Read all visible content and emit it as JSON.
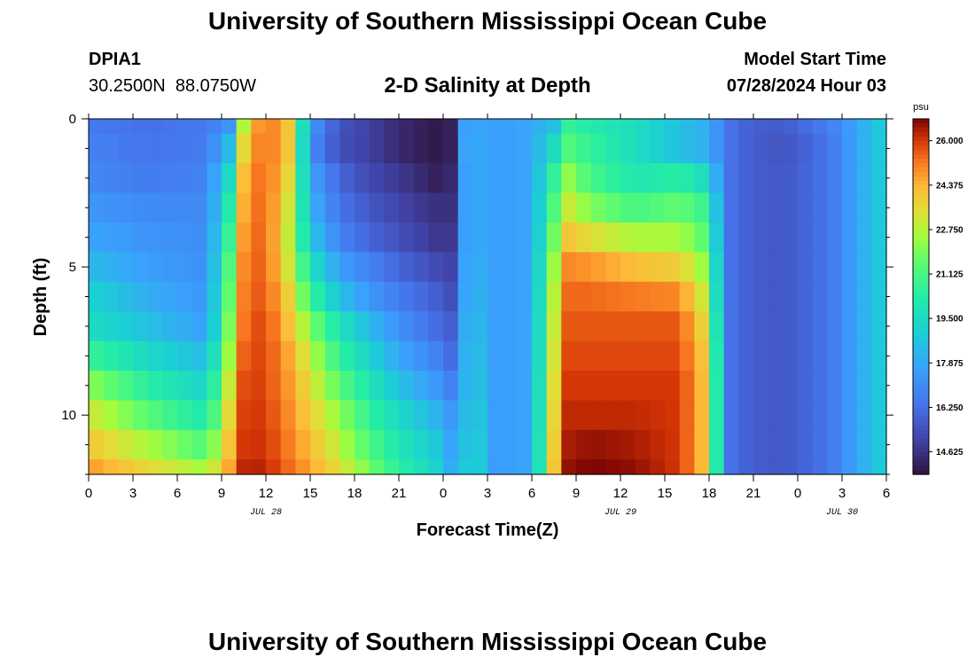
{
  "page": {
    "title": "University of Southern Mississippi Ocean Cube",
    "title_bottom": "University of Southern Mississippi Ocean Cube",
    "station_id": "DPIA1",
    "station_coords": "30.2500N  88.0750W",
    "plot_title": "2-D Salinity at Depth",
    "model_start_label": "Model Start Time",
    "model_start_time": "07/28/2024 Hour 03"
  },
  "chart_data": {
    "type": "heatmap",
    "title": "2-D Salinity at Depth",
    "xlabel": "Forecast Time(Z)",
    "ylabel": "Depth (ft)",
    "x_tick_labels": [
      "0",
      "3",
      "6",
      "9",
      "12",
      "15",
      "18",
      "21",
      "0",
      "3",
      "6",
      "9",
      "12",
      "15",
      "18",
      "21",
      "0",
      "3",
      "6"
    ],
    "x_range_hours": [
      0,
      54
    ],
    "date_labels": [
      {
        "text": "JUL 28",
        "hour": 12
      },
      {
        "text": "JUL 29",
        "hour": 36
      },
      {
        "text": "JUL 30",
        "hour": 51
      }
    ],
    "y_tick_labels": [
      "0",
      "5",
      "10"
    ],
    "y_range_ft": [
      0,
      12
    ],
    "colorbar": {
      "unit": "psu",
      "range": [
        13.8,
        26.8
      ],
      "tick_labels": [
        "26.000",
        "24.375",
        "22.750",
        "21.125",
        "19.500",
        "17.875",
        "16.250",
        "14.625"
      ],
      "tick_values": [
        26.0,
        24.375,
        22.75,
        21.125,
        19.5,
        17.875,
        16.25,
        14.625
      ]
    },
    "depth_levels_ft": [
      0,
      1,
      2,
      3,
      4,
      5,
      6,
      7,
      8,
      9,
      10,
      11,
      12
    ],
    "time_knots_hours": [
      0,
      4,
      8,
      9.8,
      10.6,
      12,
      13.5,
      15,
      17,
      19,
      21,
      23.5,
      24.5,
      25,
      26,
      27.5,
      30,
      31.5,
      32.5,
      34,
      37,
      40,
      42,
      43,
      44,
      45,
      47,
      50,
      52,
      54
    ],
    "salinity_psu": [
      [
        16.5,
        16.3,
        16.5,
        17.5,
        23.5,
        25.5,
        24.0,
        17.5,
        15.5,
        15.0,
        14.4,
        14.0,
        14.2,
        17.5,
        17.8,
        17.6,
        17.8,
        18.6,
        20.6,
        20.2,
        19.6,
        18.6,
        18.0,
        16.6,
        16.0,
        15.8,
        15.7,
        16.6,
        17.8,
        19.2
      ],
      [
        16.8,
        16.4,
        16.6,
        18.8,
        24.2,
        25.5,
        24.0,
        17.2,
        15.4,
        15.0,
        14.4,
        14.0,
        14.2,
        17.5,
        18.0,
        17.6,
        17.8,
        19.6,
        21.2,
        20.6,
        19.6,
        18.6,
        18.0,
        16.6,
        16.0,
        15.8,
        15.5,
        16.4,
        17.8,
        19.2
      ],
      [
        17.0,
        16.6,
        16.8,
        20.0,
        24.8,
        25.5,
        23.6,
        17.8,
        16.0,
        15.2,
        14.8,
        14.2,
        14.4,
        17.3,
        18.0,
        17.6,
        17.8,
        20.6,
        22.2,
        21.0,
        20.0,
        20.4,
        19.4,
        16.6,
        16.0,
        15.8,
        15.6,
        16.4,
        17.8,
        19.2
      ],
      [
        17.4,
        17.0,
        17.0,
        20.8,
        25.0,
        25.5,
        23.2,
        18.2,
        16.4,
        15.6,
        15.1,
        14.6,
        14.6,
        17.2,
        18.0,
        17.6,
        17.8,
        21.2,
        23.0,
        22.0,
        21.0,
        21.6,
        20.6,
        16.6,
        16.0,
        15.8,
        15.6,
        16.4,
        17.8,
        19.2
      ],
      [
        17.8,
        17.3,
        17.1,
        21.4,
        25.2,
        25.5,
        23.0,
        18.8,
        16.8,
        16.0,
        15.4,
        14.8,
        14.8,
        17.2,
        18.0,
        17.6,
        17.8,
        21.8,
        24.0,
        23.4,
        22.6,
        22.6,
        21.2,
        16.6,
        16.0,
        15.8,
        15.6,
        16.4,
        17.8,
        19.2
      ],
      [
        18.4,
        17.6,
        17.2,
        22.0,
        25.4,
        25.5,
        23.2,
        19.8,
        17.6,
        16.8,
        16.0,
        15.3,
        15.1,
        17.2,
        18.2,
        17.6,
        17.8,
        22.4,
        25.0,
        24.8,
        24.2,
        23.8,
        22.0,
        16.6,
        16.0,
        15.8,
        15.6,
        16.4,
        17.8,
        19.2
      ],
      [
        19.2,
        18.0,
        17.4,
        22.4,
        25.5,
        25.6,
        23.8,
        20.8,
        18.6,
        17.4,
        16.6,
        15.8,
        15.4,
        17.2,
        18.4,
        17.6,
        17.8,
        22.8,
        25.4,
        25.4,
        25.2,
        25.0,
        22.6,
        16.6,
        16.0,
        15.8,
        15.6,
        16.4,
        17.8,
        19.2
      ],
      [
        19.6,
        18.6,
        17.6,
        22.8,
        25.6,
        25.8,
        24.2,
        22.0,
        19.8,
        18.4,
        17.2,
        16.2,
        15.8,
        17.3,
        18.6,
        17.6,
        17.8,
        23.0,
        25.6,
        25.6,
        25.6,
        25.6,
        23.2,
        16.6,
        16.0,
        15.8,
        15.6,
        16.4,
        17.8,
        19.2
      ],
      [
        20.8,
        19.4,
        18.4,
        23.2,
        25.8,
        25.8,
        24.6,
        22.8,
        20.6,
        19.2,
        17.8,
        16.8,
        16.2,
        17.4,
        18.8,
        17.6,
        17.8,
        23.2,
        25.8,
        25.8,
        25.8,
        25.8,
        23.6,
        16.6,
        16.0,
        15.8,
        15.6,
        16.4,
        17.8,
        19.2
      ],
      [
        22.2,
        20.4,
        19.2,
        23.8,
        26.0,
        25.8,
        24.8,
        23.4,
        21.4,
        20.0,
        18.6,
        17.4,
        16.8,
        17.4,
        19.0,
        17.6,
        17.8,
        23.4,
        26.0,
        26.0,
        26.0,
        26.0,
        23.8,
        16.6,
        16.0,
        15.8,
        15.6,
        16.4,
        17.8,
        19.2
      ],
      [
        23.2,
        21.4,
        20.0,
        24.2,
        26.1,
        25.9,
        25.0,
        23.8,
        22.2,
        20.6,
        19.4,
        18.2,
        17.4,
        17.6,
        19.2,
        17.6,
        17.8,
        23.6,
        26.2,
        26.2,
        26.2,
        26.0,
        23.8,
        16.6,
        16.0,
        15.8,
        15.6,
        16.4,
        17.8,
        19.2
      ],
      [
        24.0,
        22.6,
        21.2,
        24.6,
        26.2,
        26.0,
        25.2,
        24.2,
        22.8,
        21.2,
        20.0,
        18.8,
        17.8,
        17.8,
        19.4,
        17.6,
        17.8,
        23.8,
        26.4,
        26.6,
        26.4,
        26.0,
        23.8,
        16.6,
        16.0,
        15.8,
        15.6,
        16.4,
        17.8,
        19.2
      ],
      [
        24.8,
        23.6,
        22.4,
        25.0,
        26.4,
        26.2,
        25.4,
        24.6,
        23.4,
        21.8,
        20.4,
        19.2,
        18.0,
        18.0,
        19.6,
        17.6,
        17.8,
        24.0,
        26.6,
        26.8,
        26.6,
        26.0,
        23.8,
        16.6,
        16.0,
        15.8,
        15.6,
        16.4,
        17.8,
        19.2
      ]
    ]
  }
}
